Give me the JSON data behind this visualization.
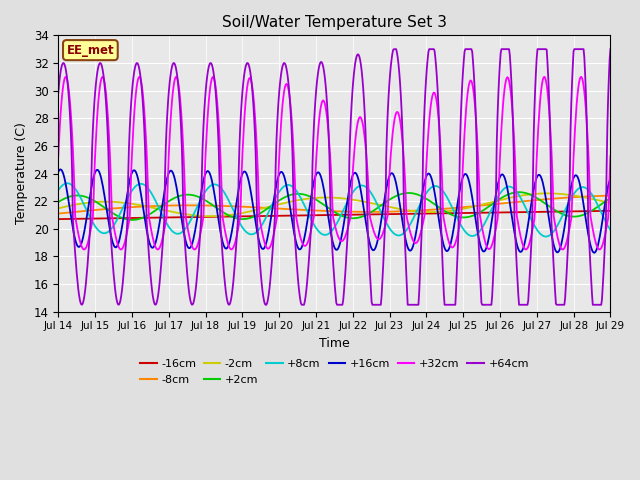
{
  "title": "Soil/Water Temperature Set 3",
  "xlabel": "Time",
  "ylabel": "Temperature (C)",
  "ylim": [
    14,
    34
  ],
  "xlim": [
    0,
    15
  ],
  "yticks": [
    14,
    16,
    18,
    20,
    22,
    24,
    26,
    28,
    30,
    32,
    34
  ],
  "xtick_labels": [
    "Jul 14",
    "Jul 15",
    "Jul 16",
    "Jul 17",
    "Jul 18",
    "Jul 19",
    "Jul 20",
    "Jul 21",
    "Jul 22",
    "Jul 23",
    "Jul 24",
    "Jul 25",
    "Jul 26",
    "Jul 27",
    "Jul 28",
    "Jul 29"
  ],
  "fig_bg_color": "#e0e0e0",
  "plot_bg_color": "#e8e8e8",
  "grid_color": "#ffffff",
  "annotation_text": "EE_met",
  "annotation_bg": "#ffff99",
  "annotation_border": "#8B4513",
  "series_colors": {
    "-16cm": "#cc0000",
    "-8cm": "#ff8800",
    "-2cm": "#cccc00",
    "+2cm": "#00cc00",
    "+8cm": "#00cccc",
    "+16cm": "#0000cc",
    "+32cm": "#ff00ff",
    "+64cm": "#9900cc"
  }
}
